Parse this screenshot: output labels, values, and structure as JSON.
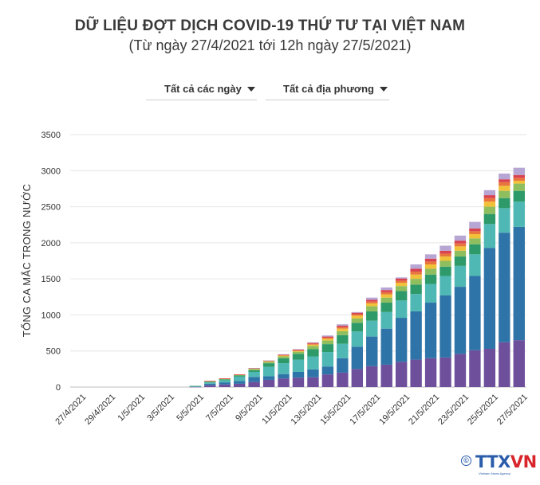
{
  "title": "DỮ LIỆU ĐỢT DỊCH COVID-19 THỨ TƯ TẠI VIỆT NAM",
  "subtitle": "(Từ ngày 27/4/2021 tới 12h ngày 27/5/2021)",
  "filters": {
    "days_label": "Tất cả các ngày",
    "regions_label": "Tất cả địa phương"
  },
  "brand": {
    "mark": "©",
    "name_main": "TTX",
    "name_accent": "VN",
    "tagline": "Vietnam News Agency"
  },
  "chart_data": {
    "type": "bar",
    "stacked": true,
    "title": "DỮ LIỆU ĐỢT DỊCH COVID-19 THỨ TƯ TẠI VIỆT NAM",
    "subtitle": "(Từ ngày 27/4/2021 tới 12h ngày 27/5/2021)",
    "xlabel": "",
    "ylabel": "TỔNG CA MẮC TRONG NƯỚC",
    "ylim": [
      0,
      3500
    ],
    "yticks": [
      0,
      500,
      1000,
      1500,
      2000,
      2500,
      3000,
      3500
    ],
    "grid": true,
    "categories": [
      "27/4/2021",
      "28/4/2021",
      "29/4/2021",
      "30/4/2021",
      "1/5/2021",
      "2/5/2021",
      "3/5/2021",
      "4/5/2021",
      "5/5/2021",
      "6/5/2021",
      "7/5/2021",
      "8/5/2021",
      "9/5/2021",
      "10/5/2021",
      "11/5/2021",
      "12/5/2021",
      "13/5/2021",
      "14/5/2021",
      "15/5/2021",
      "16/5/2021",
      "17/5/2021",
      "18/5/2021",
      "19/5/2021",
      "20/5/2021",
      "21/5/2021",
      "22/5/2021",
      "23/5/2021",
      "24/5/2021",
      "25/5/2021",
      "26/5/2021",
      "27/5/2021"
    ],
    "xtick_labels": [
      "27/4/2021",
      "29/4/2021",
      "1/5/2021",
      "3/5/2021",
      "5/5/2021",
      "7/5/2021",
      "9/5/2021",
      "11/5/2021",
      "13/5/2021",
      "15/5/2021",
      "17/5/2021",
      "19/5/2021",
      "21/5/2021",
      "23/5/2021",
      "25/5/2021",
      "27/5/2021"
    ],
    "totals": [
      0,
      0,
      0,
      0,
      0,
      0,
      0,
      0,
      16,
      85,
      120,
      175,
      265,
      370,
      455,
      525,
      620,
      715,
      870,
      1040,
      1240,
      1380,
      1520,
      1700,
      1840,
      1960,
      2100,
      2290,
      2730,
      2960,
      3040
    ],
    "series": [
      {
        "color": "#6e4f9c",
        "values": [
          0,
          0,
          0,
          0,
          0,
          0,
          0,
          0,
          3,
          25,
          35,
          45,
          70,
          100,
          120,
          130,
          135,
          175,
          200,
          250,
          290,
          310,
          350,
          380,
          400,
          410,
          460,
          510,
          530,
          620,
          650
        ]
      },
      {
        "color": "#2f74a8",
        "values": [
          0,
          0,
          0,
          0,
          0,
          0,
          0,
          0,
          0,
          20,
          30,
          40,
          70,
          50,
          60,
          80,
          110,
          110,
          200,
          310,
          410,
          500,
          610,
          670,
          770,
          860,
          930,
          1030,
          1400,
          1520,
          1570
        ]
      },
      {
        "color": "#4fb8b4",
        "values": [
          0,
          0,
          0,
          0,
          0,
          0,
          0,
          0,
          8,
          20,
          30,
          60,
          70,
          130,
          150,
          170,
          180,
          200,
          200,
          210,
          220,
          230,
          240,
          240,
          260,
          270,
          290,
          300,
          330,
          340,
          350
        ]
      },
      {
        "color": "#2e9a6a",
        "values": [
          0,
          0,
          0,
          0,
          0,
          0,
          0,
          0,
          5,
          10,
          12,
          15,
          25,
          50,
          70,
          80,
          100,
          110,
          120,
          120,
          130,
          130,
          130,
          130,
          130,
          130,
          130,
          140,
          140,
          140,
          150
        ]
      },
      {
        "color": "#8fbe5e",
        "values": [
          0,
          0,
          0,
          0,
          0,
          0,
          0,
          0,
          0,
          5,
          7,
          8,
          15,
          20,
          25,
          30,
          45,
          50,
          55,
          60,
          70,
          70,
          70,
          80,
          80,
          80,
          80,
          80,
          100,
          100,
          100
        ]
      },
      {
        "color": "#f2c13a",
        "values": [
          0,
          0,
          0,
          0,
          0,
          0,
          0,
          0,
          0,
          3,
          3,
          3,
          7,
          8,
          10,
          10,
          18,
          25,
          35,
          40,
          40,
          45,
          45,
          60,
          60,
          60,
          60,
          60,
          70,
          70,
          40
        ]
      },
      {
        "color": "#e8753c",
        "values": [
          0,
          0,
          0,
          0,
          0,
          0,
          0,
          0,
          0,
          1,
          2,
          2,
          3,
          5,
          7,
          10,
          12,
          15,
          20,
          20,
          25,
          30,
          30,
          40,
          40,
          40,
          40,
          40,
          50,
          50,
          40
        ]
      },
      {
        "color": "#d9424f",
        "values": [
          0,
          0,
          0,
          0,
          0,
          0,
          0,
          0,
          0,
          1,
          1,
          2,
          3,
          5,
          8,
          10,
          12,
          15,
          20,
          20,
          25,
          30,
          30,
          40,
          40,
          40,
          40,
          40,
          40,
          40,
          40
        ]
      },
      {
        "color": "#b7a6d3",
        "values": [
          0,
          0,
          0,
          0,
          0,
          0,
          0,
          0,
          0,
          0,
          0,
          0,
          2,
          2,
          5,
          5,
          8,
          15,
          20,
          10,
          30,
          35,
          15,
          60,
          60,
          70,
          70,
          90,
          70,
          80,
          100
        ]
      }
    ]
  }
}
